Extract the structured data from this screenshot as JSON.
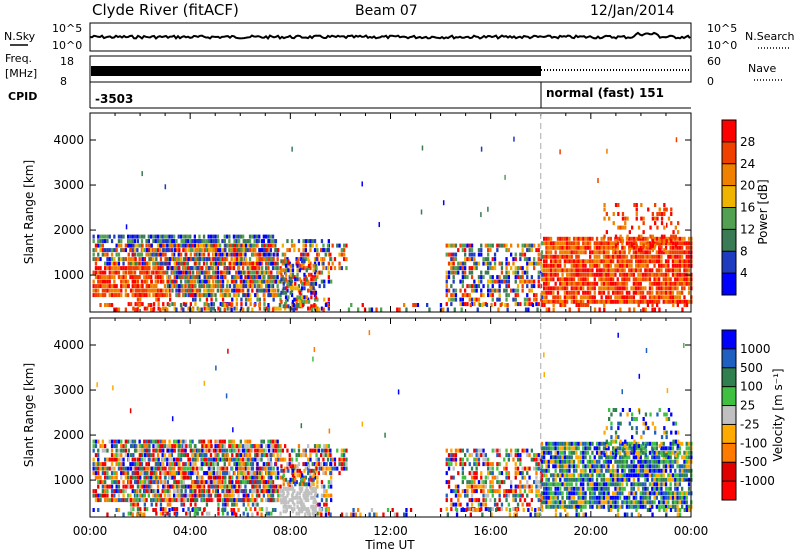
{
  "header": {
    "station": "Clyde River (fitACF)",
    "beam": "Beam 07",
    "date": "12/Jan/2014"
  },
  "panels": {
    "nsky": {
      "label_top": "N.Sky",
      "tick_top": "10^5",
      "tick_bottom": "10^0",
      "right_tick_top": "10^5",
      "right_tick_bottom": "10^0",
      "right_label": "N.Search"
    },
    "freq": {
      "label_top": "Freq.",
      "label_unit": "[MHz]",
      "tick_top": "18",
      "tick_bottom": "8",
      "right_tick_top": "60",
      "right_tick_bottom": "0",
      "right_label": "Nave"
    },
    "cpid": {
      "label": "CPID",
      "left_mode": "-3503",
      "right_mode": "normal (fast) 151"
    }
  },
  "colors": {
    "power_scale": [
      "#0000ff",
      "#1f3bbf",
      "#3a7a55",
      "#52a052",
      "#f0b400",
      "#f08000",
      "#f04000",
      "#ff0000"
    ],
    "velocity_scale": [
      "#ff0000",
      "#e00000",
      "#ff7a00",
      "#ffaa00",
      "#c0c0c0",
      "#40c040",
      "#2f7f4f",
      "#1f5fbf",
      "#0000ff"
    ]
  },
  "chart_data": [
    {
      "type": "heatmap",
      "name": "power",
      "ylabel": "Slant Range [km]",
      "yticks": [
        "1000",
        "2000",
        "3000",
        "4000"
      ],
      "ylim": [
        180,
        4600
      ],
      "colorbar_label": "Power [dB]",
      "colorbar_ticks": [
        "4",
        "8",
        "12",
        "16",
        "20",
        "24",
        "28"
      ],
      "zlim": [
        0,
        30
      ]
    },
    {
      "type": "heatmap",
      "name": "velocity",
      "ylabel": "Slant Range [km]",
      "yticks": [
        "1000",
        "2000",
        "3000",
        "4000"
      ],
      "ylim": [
        180,
        4600
      ],
      "colorbar_label": "Velocity [m s⁻¹]",
      "colorbar_ticks": [
        "1000",
        "500",
        "100",
        "25",
        "-25",
        "-100",
        "-500",
        "-1000"
      ]
    }
  ],
  "xaxis": {
    "label": "Time UT",
    "ticks": [
      "00:00",
      "04:00",
      "08:00",
      "12:00",
      "16:00",
      "20:00",
      "00:00"
    ],
    "xlim_hours": [
      0,
      24
    ],
    "mode_change_hour": 18.0
  }
}
